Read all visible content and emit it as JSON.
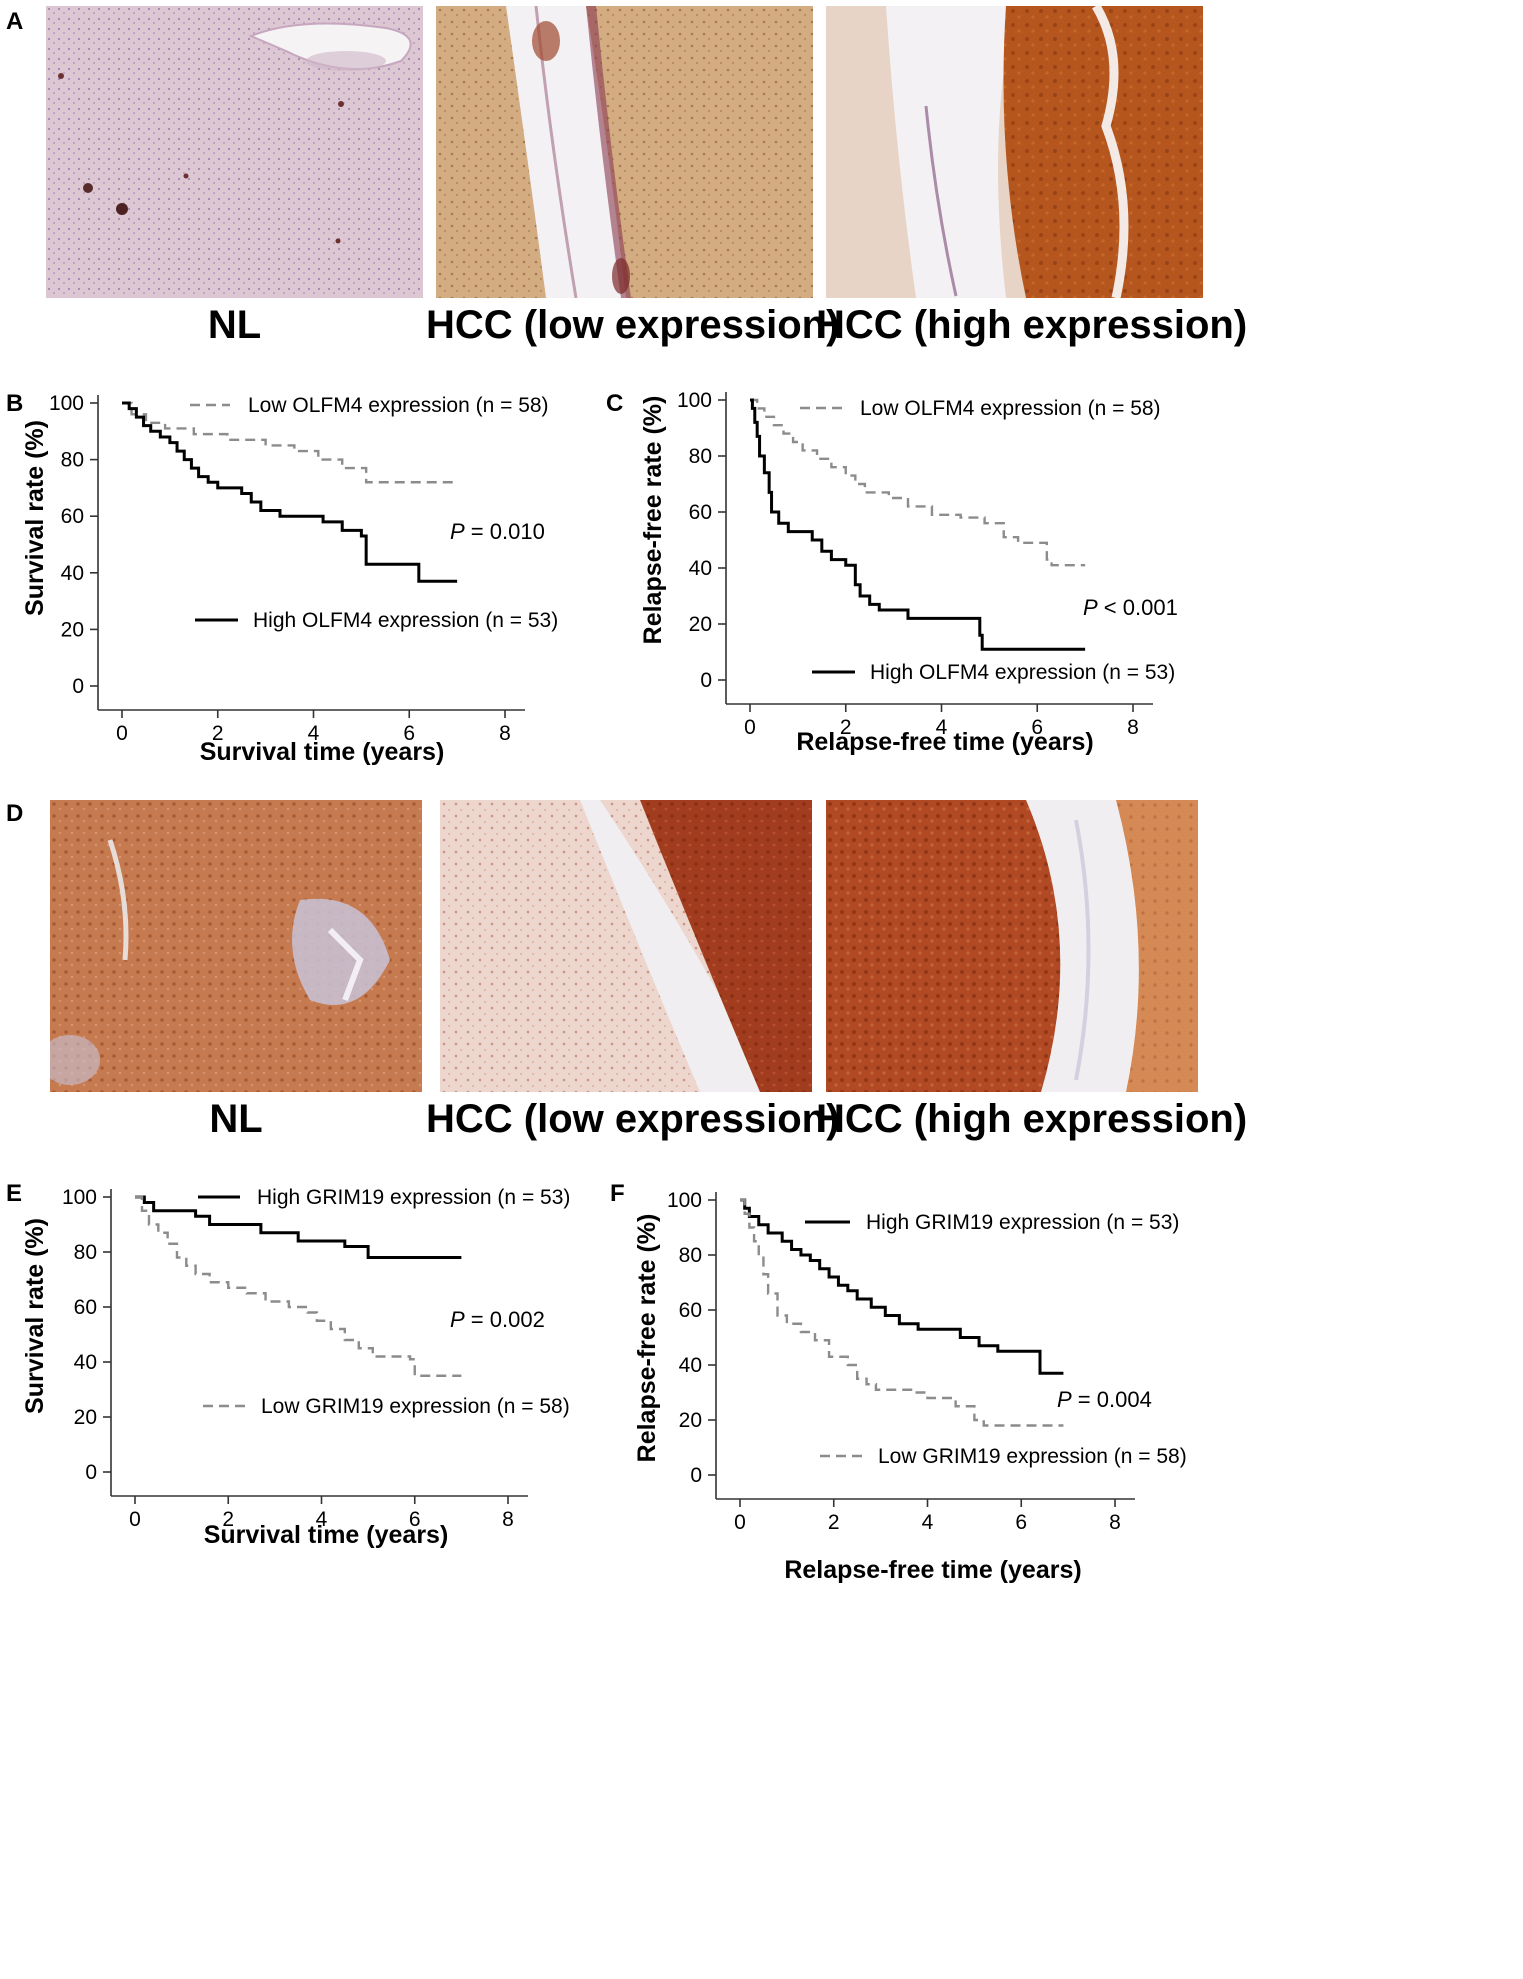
{
  "panel_letters": {
    "A": "A",
    "B": "B",
    "C": "C",
    "D": "D",
    "E": "E",
    "F": "F"
  },
  "panel_A": {
    "captions": [
      "NL",
      "HCC (low expression)",
      "HCC (high expression)"
    ],
    "stain_colors": {
      "nl_base": "#dcc7d3",
      "low_base": "#d3ac82",
      "high_base": "#b5561f",
      "stroma": "#f3f1f3"
    }
  },
  "panel_D": {
    "captions": [
      "NL",
      "HCC (low expression)",
      "HCC (high expression)"
    ],
    "stain_colors": {
      "nl_base": "#c67a50",
      "low_base": "#ecd6cd",
      "high_base": "#b14a24",
      "stroma": "#f1eef1"
    }
  },
  "chart_data": [
    {
      "id": "B",
      "type": "line",
      "xlabel": "Survival time (years)",
      "ylabel": "Survival rate (%)",
      "xlim": [
        0,
        8
      ],
      "ylim": [
        0,
        100
      ],
      "xticks": [
        "0",
        "2",
        "4",
        "6",
        "8"
      ],
      "yticks": [
        "0",
        "20",
        "40",
        "60",
        "80",
        "100"
      ],
      "annotation": {
        "prefix": "P",
        "text": " = 0.010"
      },
      "series": [
        {
          "name": "Low OLFM4 expression (n = 58)",
          "style": "dashed",
          "color": "#8c8c8c",
          "steps": [
            [
              0,
              100
            ],
            [
              0.2,
              96
            ],
            [
              0.5,
              93
            ],
            [
              0.9,
              91
            ],
            [
              1.5,
              89
            ],
            [
              2.2,
              87
            ],
            [
              3.0,
              85
            ],
            [
              3.6,
              83
            ],
            [
              4.1,
              80
            ],
            [
              4.6,
              77
            ],
            [
              5.1,
              72
            ],
            [
              7.0,
              72
            ]
          ]
        },
        {
          "name": "High OLFM4 expression (n = 53)",
          "style": "solid",
          "color": "#000000",
          "steps": [
            [
              0,
              100
            ],
            [
              0.15,
              98
            ],
            [
              0.3,
              95
            ],
            [
              0.45,
              92
            ],
            [
              0.6,
              90
            ],
            [
              0.8,
              88
            ],
            [
              1.0,
              86
            ],
            [
              1.15,
              83
            ],
            [
              1.3,
              80
            ],
            [
              1.45,
              77
            ],
            [
              1.6,
              74
            ],
            [
              1.8,
              72
            ],
            [
              2.0,
              70
            ],
            [
              2.5,
              68
            ],
            [
              2.7,
              65
            ],
            [
              2.9,
              62
            ],
            [
              3.3,
              60
            ],
            [
              4.2,
              58
            ],
            [
              4.6,
              55
            ],
            [
              5.0,
              53
            ],
            [
              5.1,
              43
            ],
            [
              5.9,
              43
            ],
            [
              6.2,
              37
            ],
            [
              7.0,
              37
            ]
          ]
        }
      ]
    },
    {
      "id": "C",
      "type": "line",
      "xlabel": "Relapse-free time (years)",
      "ylabel": "Relapse-free rate (%)",
      "xlim": [
        0,
        8
      ],
      "ylim": [
        0,
        100
      ],
      "xticks": [
        "0",
        "2",
        "4",
        "6",
        "8"
      ],
      "yticks": [
        "0",
        "20",
        "40",
        "60",
        "80",
        "100"
      ],
      "annotation": {
        "prefix": "P",
        "text": " < 0.001"
      },
      "series": [
        {
          "name": "Low OLFM4 expression (n = 58)",
          "style": "dashed",
          "color": "#8c8c8c",
          "steps": [
            [
              0,
              100
            ],
            [
              0.15,
              97
            ],
            [
              0.3,
              94
            ],
            [
              0.5,
              91
            ],
            [
              0.7,
              88
            ],
            [
              0.9,
              85
            ],
            [
              1.1,
              82
            ],
            [
              1.4,
              79
            ],
            [
              1.7,
              76
            ],
            [
              2.0,
              73
            ],
            [
              2.2,
              70
            ],
            [
              2.4,
              67
            ],
            [
              2.9,
              65
            ],
            [
              3.3,
              62
            ],
            [
              3.8,
              59
            ],
            [
              4.4,
              58
            ],
            [
              4.9,
              56
            ],
            [
              5.3,
              51
            ],
            [
              5.6,
              49
            ],
            [
              6.2,
              43
            ],
            [
              6.3,
              41
            ],
            [
              7.0,
              41
            ]
          ]
        },
        {
          "name": "High OLFM4 expression (n = 53)",
          "style": "solid",
          "color": "#000000",
          "steps": [
            [
              0,
              100
            ],
            [
              0.05,
              97
            ],
            [
              0.1,
              92
            ],
            [
              0.15,
              87
            ],
            [
              0.2,
              80
            ],
            [
              0.3,
              74
            ],
            [
              0.4,
              67
            ],
            [
              0.45,
              60
            ],
            [
              0.6,
              56
            ],
            [
              0.8,
              53
            ],
            [
              1.3,
              50
            ],
            [
              1.5,
              46
            ],
            [
              1.7,
              43
            ],
            [
              2.0,
              41
            ],
            [
              2.2,
              34
            ],
            [
              2.3,
              30
            ],
            [
              2.5,
              27
            ],
            [
              2.7,
              25
            ],
            [
              3.3,
              22
            ],
            [
              4.8,
              16
            ],
            [
              4.85,
              11
            ],
            [
              7.0,
              11
            ]
          ]
        }
      ]
    },
    {
      "id": "E",
      "type": "line",
      "xlabel": "Survival time (years)",
      "ylabel": "Survival rate (%)",
      "xlim": [
        0,
        8
      ],
      "ylim": [
        0,
        100
      ],
      "xticks": [
        "0",
        "2",
        "4",
        "6",
        "8"
      ],
      "yticks": [
        "0",
        "20",
        "40",
        "60",
        "80",
        "100"
      ],
      "annotation": {
        "prefix": "P",
        "text": " = 0.002"
      },
      "series": [
        {
          "name": "High GRIM19 expression (n = 53)",
          "style": "solid",
          "color": "#000000",
          "steps": [
            [
              0,
              100
            ],
            [
              0.2,
              98
            ],
            [
              0.4,
              95
            ],
            [
              1.3,
              93
            ],
            [
              1.6,
              90
            ],
            [
              2.7,
              87
            ],
            [
              3.5,
              84
            ],
            [
              4.5,
              82
            ],
            [
              5.0,
              78
            ],
            [
              7.0,
              78
            ]
          ]
        },
        {
          "name": "Low GRIM19 expression (n = 58)",
          "style": "dashed",
          "color": "#8c8c8c",
          "steps": [
            [
              0,
              100
            ],
            [
              0.15,
              95
            ],
            [
              0.3,
              90
            ],
            [
              0.5,
              87
            ],
            [
              0.7,
              83
            ],
            [
              0.9,
              78
            ],
            [
              1.1,
              75
            ],
            [
              1.3,
              72
            ],
            [
              1.6,
              69
            ],
            [
              2.0,
              67
            ],
            [
              2.4,
              65
            ],
            [
              2.8,
              62
            ],
            [
              3.3,
              60
            ],
            [
              3.7,
              58
            ],
            [
              3.9,
              55
            ],
            [
              4.2,
              52
            ],
            [
              4.5,
              48
            ],
            [
              4.8,
              45
            ],
            [
              5.1,
              42
            ],
            [
              5.9,
              41
            ],
            [
              6.0,
              35
            ],
            [
              7.0,
              35
            ]
          ]
        }
      ]
    },
    {
      "id": "F",
      "type": "line",
      "xlabel": "Relapse-free time (years)",
      "ylabel": "Relapse-free rate (%)",
      "xlim": [
        0,
        8
      ],
      "ylim": [
        0,
        100
      ],
      "xticks": [
        "0",
        "2",
        "4",
        "6",
        "8"
      ],
      "yticks": [
        "0",
        "20",
        "40",
        "60",
        "80",
        "100"
      ],
      "annotation": {
        "prefix": "P",
        "text": " = 0.004"
      },
      "series": [
        {
          "name": "High GRIM19 expression (n = 53)",
          "style": "solid",
          "color": "#000000",
          "steps": [
            [
              0,
              100
            ],
            [
              0.1,
              97
            ],
            [
              0.2,
              94
            ],
            [
              0.4,
              91
            ],
            [
              0.6,
              88
            ],
            [
              0.9,
              85
            ],
            [
              1.1,
              82
            ],
            [
              1.3,
              80
            ],
            [
              1.5,
              78
            ],
            [
              1.7,
              75
            ],
            [
              1.9,
              72
            ],
            [
              2.1,
              69
            ],
            [
              2.3,
              67
            ],
            [
              2.5,
              64
            ],
            [
              2.8,
              61
            ],
            [
              3.1,
              58
            ],
            [
              3.4,
              55
            ],
            [
              3.8,
              53
            ],
            [
              4.7,
              50
            ],
            [
              5.1,
              47
            ],
            [
              5.5,
              45
            ],
            [
              6.4,
              37
            ],
            [
              6.9,
              37
            ]
          ]
        },
        {
          "name": "Low GRIM19 expression (n = 58)",
          "style": "dashed",
          "color": "#8c8c8c",
          "steps": [
            [
              0,
              100
            ],
            [
              0.1,
              95
            ],
            [
              0.2,
              90
            ],
            [
              0.3,
              85
            ],
            [
              0.4,
              79
            ],
            [
              0.5,
              73
            ],
            [
              0.6,
              66
            ],
            [
              0.8,
              58
            ],
            [
              1.0,
              55
            ],
            [
              1.3,
              52
            ],
            [
              1.6,
              49
            ],
            [
              1.9,
              43
            ],
            [
              2.3,
              40
            ],
            [
              2.5,
              35
            ],
            [
              2.7,
              33
            ],
            [
              2.9,
              31
            ],
            [
              3.7,
              30
            ],
            [
              4.0,
              28
            ],
            [
              4.6,
              25
            ],
            [
              5.0,
              20
            ],
            [
              5.2,
              18
            ],
            [
              6.9,
              18
            ]
          ]
        }
      ]
    }
  ]
}
